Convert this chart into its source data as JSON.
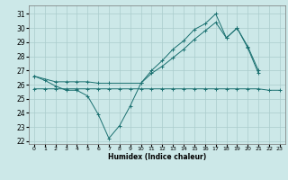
{
  "xlabel": "Humidex (Indice chaleur)",
  "background_color": "#cce8e8",
  "grid_color": "#aacccc",
  "line_color": "#1a7070",
  "xlim": [
    -0.5,
    23.5
  ],
  "ylim": [
    21.8,
    31.6
  ],
  "yticks": [
    22,
    23,
    24,
    25,
    26,
    27,
    28,
    29,
    30,
    31
  ],
  "xticks": [
    0,
    1,
    2,
    3,
    4,
    5,
    6,
    7,
    8,
    9,
    10,
    11,
    12,
    13,
    14,
    15,
    16,
    17,
    18,
    19,
    20,
    21,
    22,
    23
  ],
  "series": [
    {
      "x": [
        0,
        1,
        2,
        3,
        4,
        5,
        6,
        7,
        8,
        9,
        10,
        11,
        12,
        13,
        14,
        15,
        16,
        17,
        18,
        19,
        20,
        21
      ],
      "y": [
        26.6,
        26.3,
        25.9,
        25.6,
        25.6,
        25.2,
        23.9,
        22.2,
        23.1,
        24.5,
        26.1,
        27.0,
        27.7,
        28.5,
        29.1,
        29.9,
        30.3,
        31.0,
        29.3,
        30.0,
        28.6,
        26.8
      ]
    },
    {
      "x": [
        0,
        2,
        3,
        4,
        5,
        6,
        7,
        10,
        11,
        12,
        13,
        14,
        15,
        16,
        17,
        18,
        19,
        20,
        21
      ],
      "y": [
        26.6,
        26.2,
        26.2,
        26.2,
        26.2,
        26.1,
        26.1,
        26.1,
        26.8,
        27.3,
        27.9,
        28.5,
        29.2,
        29.8,
        30.4,
        29.3,
        30.0,
        28.7,
        27.0
      ]
    },
    {
      "x": [
        0,
        1,
        2,
        3,
        4,
        5,
        6,
        7,
        8,
        9,
        10,
        11,
        12,
        13,
        14,
        15,
        16,
        17,
        18,
        19,
        20,
        21,
        22,
        23
      ],
      "y": [
        25.7,
        25.7,
        25.7,
        25.7,
        25.7,
        25.7,
        25.7,
        25.7,
        25.7,
        25.7,
        25.7,
        25.7,
        25.7,
        25.7,
        25.7,
        25.7,
        25.7,
        25.7,
        25.7,
        25.7,
        25.7,
        25.7,
        25.6,
        25.6
      ]
    }
  ]
}
